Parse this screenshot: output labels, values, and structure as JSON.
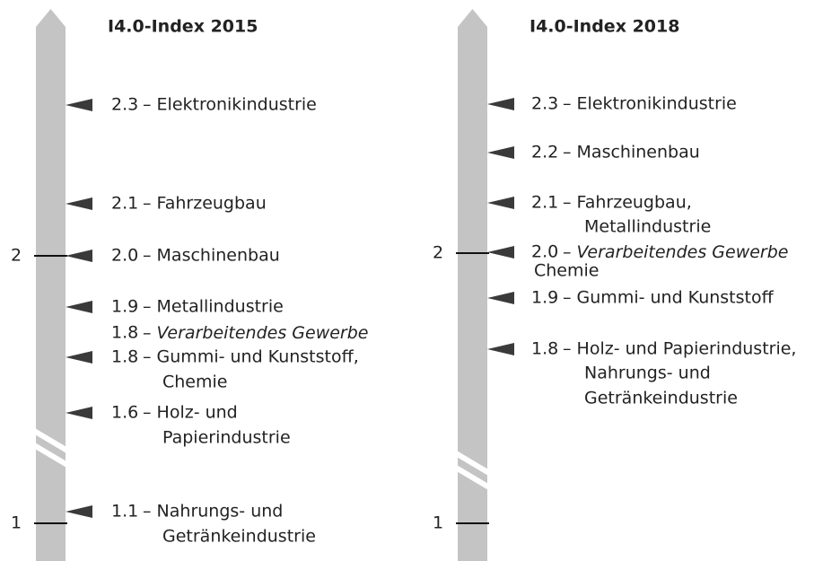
{
  "panels": [
    {
      "title": "I4.0-Index 2015",
      "axis_labels": [
        "2",
        "1"
      ],
      "entries": [
        {
          "value": "2.3",
          "lines": [
            "– Elektronikindustrie"
          ]
        },
        {
          "value": "2.1",
          "lines": [
            "– Fahrzeugbau"
          ]
        },
        {
          "value": "2.0",
          "lines": [
            "– Maschinenbau"
          ]
        },
        {
          "value": "1.9",
          "lines": [
            "– Metallindustrie"
          ]
        },
        {
          "value": "1.8",
          "lines": [
            "– Verarbeitendes Gewerbe"
          ]
        },
        {
          "value": "1.8",
          "lines": [
            "– Gummi- und Kunststoff,",
            "Chemie"
          ]
        },
        {
          "value": "1.6",
          "lines": [
            "– Holz- und",
            "Papierindustrie"
          ]
        },
        {
          "value": "1.1",
          "lines": [
            "– Nahrungs- und",
            "Getränkeindustrie"
          ]
        }
      ]
    },
    {
      "title": "I4.0-Index 2018",
      "axis_labels": [
        "2",
        "1"
      ],
      "entries": [
        {
          "value": "2.3",
          "lines": [
            "– Elektronikindustrie"
          ]
        },
        {
          "value": "2.2",
          "lines": [
            "– Maschinenbau"
          ]
        },
        {
          "value": "2.1",
          "lines": [
            "– Fahrzeugbau,",
            "Metallindustrie"
          ]
        },
        {
          "value": "2.0",
          "lines": [
            "– Verarbeitendes Gewerbe",
            "Chemie"
          ]
        },
        {
          "value": "1.9",
          "lines": [
            "– Gummi- und Kunststoff"
          ]
        },
        {
          "value": "1.8",
          "lines": [
            "– Holz- und Papierindustrie,",
            "Nahrungs- und",
            "Getränkeindustrie"
          ]
        }
      ]
    }
  ]
}
